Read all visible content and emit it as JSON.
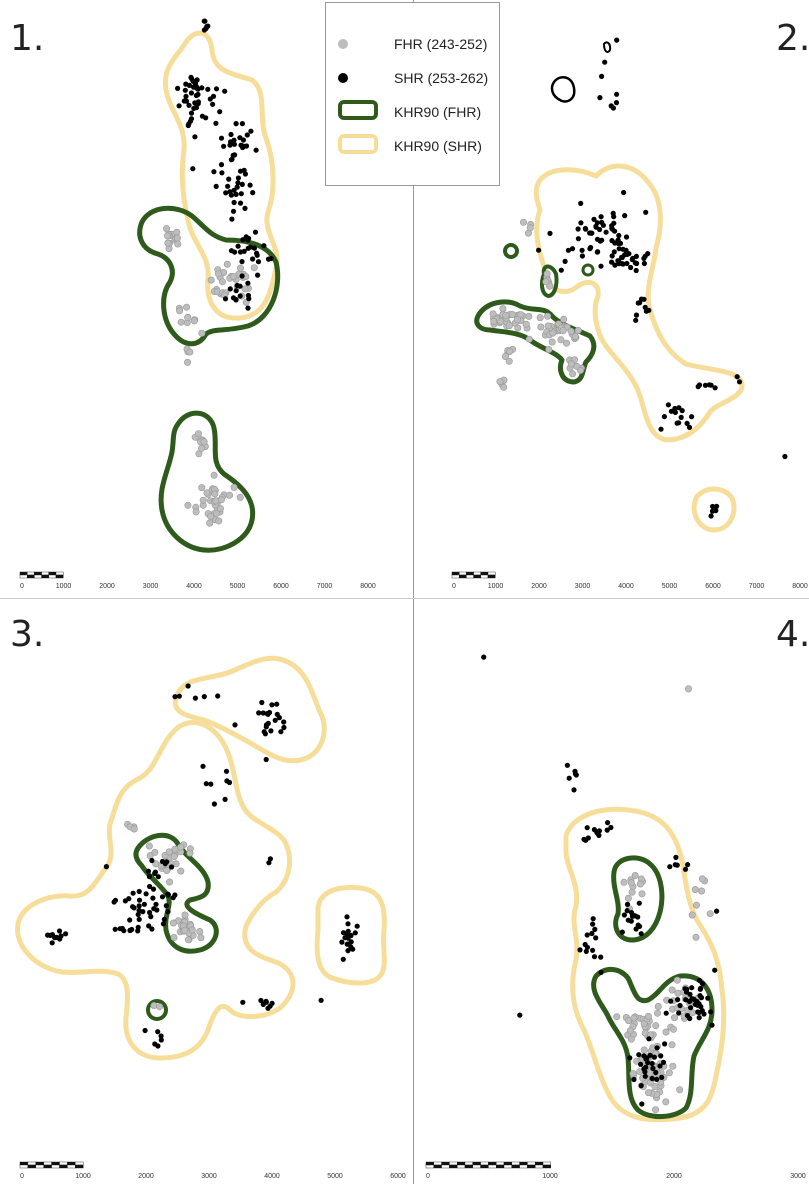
{
  "colors": {
    "fhr_points": "#bdbdbd",
    "shr_points": "#000000",
    "khr_fhr": "#2e5a1c",
    "khr_shr": "#f6dd9a"
  },
  "legend": {
    "items": [
      {
        "label": "FHR (243-252)",
        "symbol": "gray-dot"
      },
      {
        "label": "SHR (253-262)",
        "symbol": "black-dot"
      },
      {
        "label": "KHR90 (FHR)",
        "symbol": "green-outline"
      },
      {
        "label": "KHR90 (SHR)",
        "symbol": "yellow-outline"
      }
    ]
  },
  "panels": [
    {
      "number": "1.",
      "scale_ticks": [
        "0",
        "1000",
        "2000",
        "3000",
        "4000",
        "5000",
        "6000",
        "7000",
        "8000"
      ]
    },
    {
      "number": "2.",
      "scale_ticks": [
        "0",
        "1000",
        "2000",
        "3000",
        "4000",
        "5000",
        "6000",
        "7000",
        "8000"
      ]
    },
    {
      "number": "3.",
      "scale_ticks": [
        "0",
        "1000",
        "2000",
        "3000",
        "4000",
        "5000",
        "6000"
      ]
    },
    {
      "number": "4.",
      "scale_ticks": [
        "0",
        "1000",
        "2000",
        "3000"
      ]
    }
  ]
}
